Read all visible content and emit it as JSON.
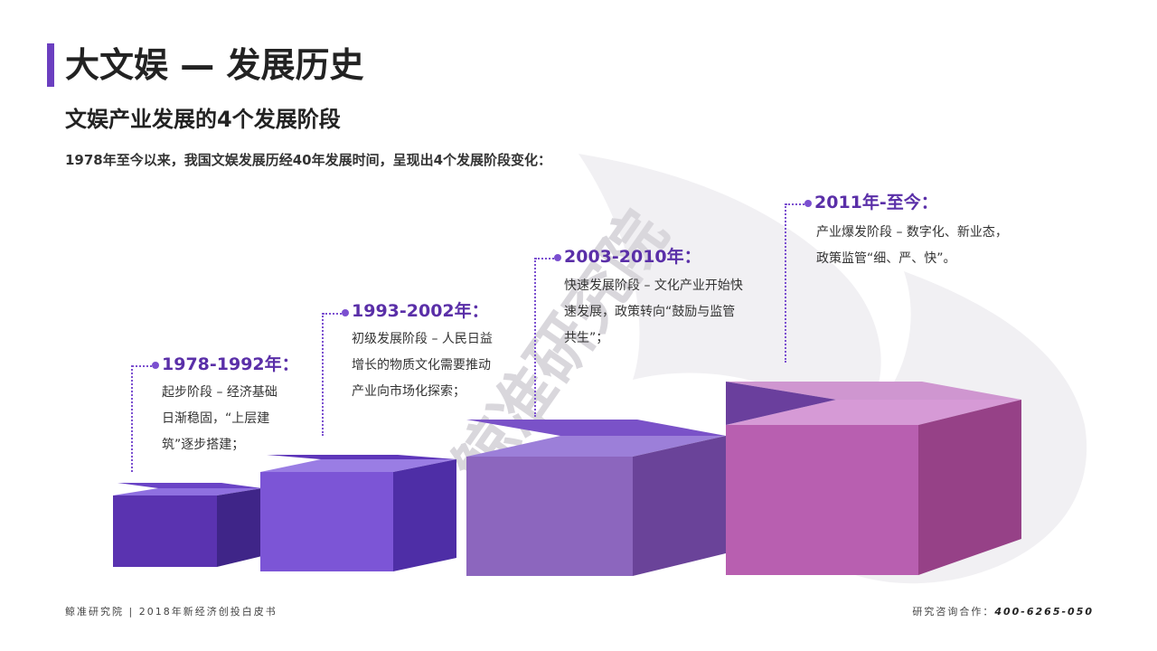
{
  "header": {
    "title": "大文娱 — 发展历史",
    "subtitle": "文娱产业发展的4个发展阶段",
    "intro": "1978年至今以来，我国文娱发展历经40年发展时间，呈现出4个发展阶段变化："
  },
  "watermark": {
    "text": "鲸准研究院"
  },
  "stages": [
    {
      "label": "1978-1992年：",
      "desc": [
        "起步阶段 – 经济基础",
        "日渐稳固，“上层建",
        "筑”逐步搭建；"
      ]
    },
    {
      "label": "1993-2002年：",
      "desc": [
        "初级发展阶段 – 人民日益",
        "增长的物质文化需要推动",
        "产业向市场化探索；"
      ]
    },
    {
      "label": "2003-2010年：",
      "desc": [
        "快速发展阶段 – 文化产业开始快",
        "速发展，政策转向“鼓励与监管",
        "共生”；"
      ]
    },
    {
      "label": "2011年-至今：",
      "desc": [
        "产业爆发阶段 – 数字化、新业态，",
        "政策监管“细、严、快”。"
      ]
    }
  ],
  "colors": {
    "accent": "#6b3fc0",
    "step1": "#5b34b3",
    "step2": "#7b56d4",
    "step3": "#8a67c4",
    "step4": "#b95fb0"
  },
  "footer": {
    "left": "鲸准研究院 | 2018年新经济创投白皮书",
    "right_label": "研究咨询合作：",
    "right_phone": "400-6265-050"
  }
}
